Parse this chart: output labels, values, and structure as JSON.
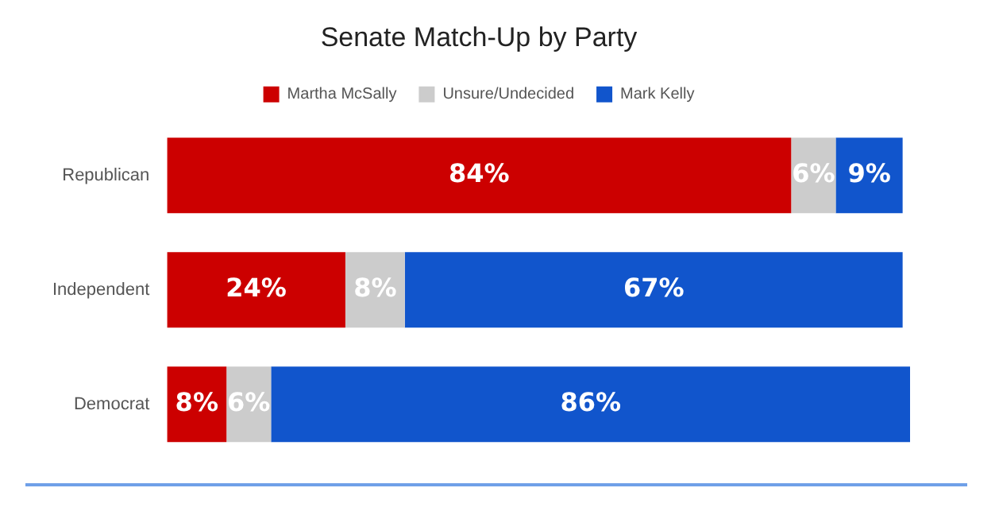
{
  "chart_data": {
    "type": "bar",
    "orientation": "horizontal",
    "stacked": true,
    "title": "Senate Match-Up by Party",
    "categories": [
      "Republican",
      "Independent",
      "Democrat"
    ],
    "legend": "top",
    "tick_labels": "y",
    "series": [
      {
        "name": "Martha McSally",
        "color": "#cc0000",
        "values": [
          84,
          24,
          8
        ],
        "value_labels": [
          "84%",
          "24%",
          "8%"
        ]
      },
      {
        "name": "Unsure/Undecided",
        "color": "#cccccc",
        "values": [
          6,
          8,
          6
        ],
        "value_labels": [
          "6%",
          "8%",
          "6%"
        ]
      },
      {
        "name": "Mark Kelly",
        "color": "#1155cc",
        "values": [
          9,
          67,
          86
        ],
        "value_labels": [
          "9%",
          "67%",
          "86%"
        ]
      }
    ]
  }
}
